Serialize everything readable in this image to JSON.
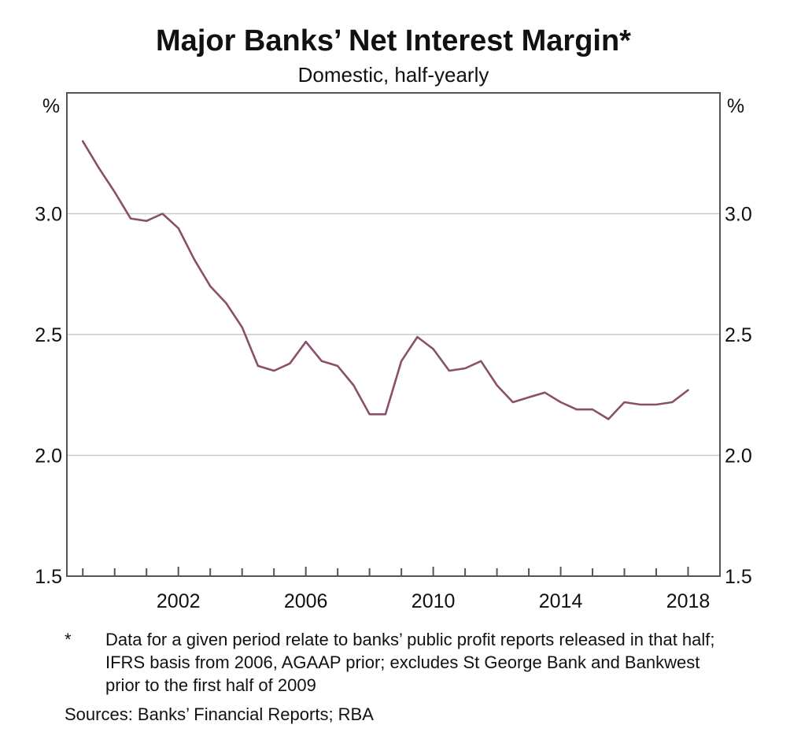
{
  "chart_data": {
    "type": "line",
    "title": "Major Banks’ Net Interest Margin*",
    "subtitle": "Domestic, half-yearly",
    "y_unit_label": "%",
    "ylim": [
      1.5,
      3.5
    ],
    "y_ticks": [
      1.5,
      2.0,
      2.5,
      3.0
    ],
    "y_tick_labels": [
      "1.5",
      "2.0",
      "2.5",
      "3.0"
    ],
    "xlim": [
      1998.5,
      2019.0
    ],
    "x_ticks": [
      2002,
      2006,
      2010,
      2014,
      2018
    ],
    "x_tick_labels": [
      "2002",
      "2006",
      "2010",
      "2014",
      "2018"
    ],
    "grid": true,
    "line_color": "#8a4f6a",
    "series": [
      {
        "x": [
          1999.0,
          1999.5,
          2000.0,
          2000.5,
          2001.0,
          2001.5,
          2002.0,
          2002.5,
          2003.0,
          2003.5,
          2004.0,
          2004.5,
          2005.0,
          2005.5,
          2006.0,
          2006.5,
          2007.0,
          2007.5,
          2008.0,
          2008.5,
          2009.0,
          2009.5,
          2010.0,
          2010.5,
          2011.0,
          2011.5,
          2012.0,
          2012.5,
          2013.0,
          2013.5,
          2014.0,
          2014.5,
          2015.0,
          2015.5,
          2016.0,
          2016.5,
          2017.0,
          2017.5,
          2018.0
        ],
        "values": [
          3.3,
          3.19,
          3.09,
          2.98,
          2.97,
          3.0,
          2.94,
          2.81,
          2.7,
          2.63,
          2.53,
          2.37,
          2.35,
          2.38,
          2.47,
          2.39,
          2.37,
          2.29,
          2.17,
          2.17,
          2.39,
          2.49,
          2.44,
          2.35,
          2.36,
          2.39,
          2.29,
          2.22,
          2.24,
          2.26,
          2.22,
          2.19,
          2.19,
          2.15,
          2.22,
          2.21,
          2.21,
          2.22,
          2.27
        ]
      }
    ]
  },
  "footnote": {
    "marker": "*",
    "text": "Data for a given period relate to banks’ public profit reports released in that half; IFRS basis from 2006, AGAAP prior; excludes St George Bank and Bankwest prior to the first half of 2009"
  },
  "sources": "Sources: Banks’ Financial Reports; RBA"
}
